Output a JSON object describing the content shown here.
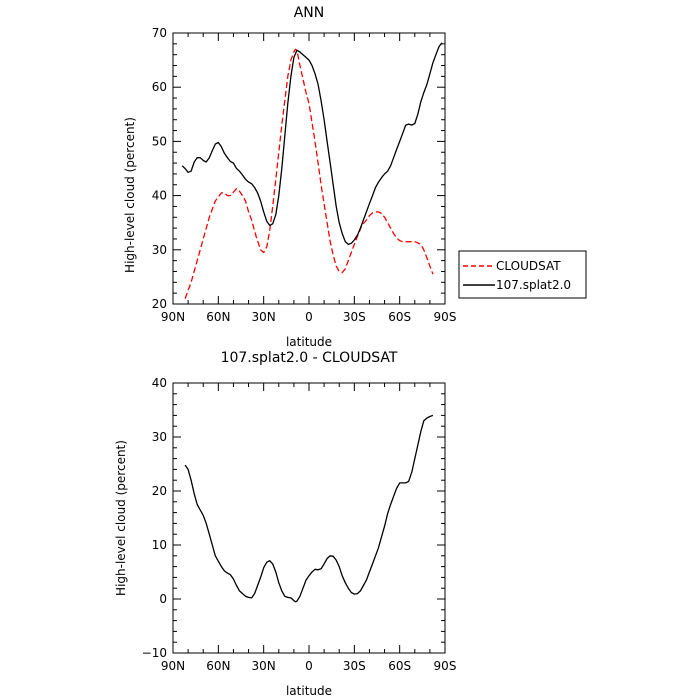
{
  "chart_data": [
    {
      "type": "line",
      "title": "ANN",
      "xlabel": "latitude",
      "ylabel": "High-level cloud (percent)",
      "xlim": [
        90,
        -90
      ],
      "ylim": [
        20,
        70
      ],
      "xticks": [
        90,
        60,
        30,
        0,
        -30,
        -60,
        -90
      ],
      "xtick_labels": [
        "90N",
        "60N",
        "30N",
        "0",
        "30S",
        "60S",
        "90S"
      ],
      "yticks": [
        20,
        30,
        40,
        50,
        60,
        70
      ],
      "ytick_labels": [
        "20",
        "30",
        "40",
        "50",
        "60",
        "70"
      ],
      "legend_position": "right",
      "series": [
        {
          "name": "CLOUDSAT",
          "color": "#ff0000",
          "dash": "dashed",
          "x": [
            82,
            78,
            74,
            70,
            66,
            62,
            58,
            56,
            54,
            52,
            48,
            46,
            44,
            42,
            40,
            38,
            35,
            32,
            30,
            28,
            26,
            24,
            22,
            20,
            18,
            16,
            14,
            12,
            10,
            9,
            8,
            6,
            4,
            2,
            0,
            -2,
            -4,
            -6,
            -8,
            -10,
            -12,
            -14,
            -16,
            -18,
            -20,
            -22,
            -24,
            -26,
            -28,
            -30,
            -32,
            -35,
            -38,
            -40,
            -42,
            -44,
            -46,
            -48,
            -50,
            -52,
            -54,
            -56,
            -58,
            -60,
            -62,
            -64,
            -66,
            -68,
            -70,
            -72,
            -74,
            -76,
            -78,
            -80,
            -82
          ],
          "y": [
            21,
            24,
            28,
            32,
            36,
            39,
            40.5,
            40.5,
            40,
            40,
            41.3,
            40.8,
            40,
            39,
            37,
            35.5,
            32.5,
            30,
            29.5,
            30.5,
            33.5,
            38,
            43,
            48,
            53,
            57.5,
            62,
            65,
            66.5,
            67,
            66.8,
            64,
            61.5,
            59,
            57,
            53.5,
            50,
            46,
            42,
            38.5,
            35,
            31.5,
            29,
            27,
            26,
            25.8,
            26.5,
            28,
            29.5,
            31,
            32.5,
            34.5,
            35.5,
            36.3,
            36.8,
            37,
            37,
            36.7,
            36,
            35,
            34,
            33,
            32.2,
            31.7,
            31.5,
            31.5,
            31.5,
            31.5,
            31.5,
            31.3,
            31,
            30,
            28.5,
            27,
            25.5
          ]
        },
        {
          "name": "107.splat2.0",
          "color": "#000000",
          "dash": "solid",
          "x": [
            84,
            82,
            80,
            78,
            76,
            74,
            72,
            70,
            68,
            66,
            64,
            62,
            60,
            58,
            56,
            54,
            52,
            50,
            48,
            46,
            44,
            42,
            40,
            38,
            36,
            34,
            32,
            30,
            28,
            26,
            24,
            22,
            20,
            18,
            16,
            14,
            12,
            10,
            8,
            6,
            4,
            2,
            0,
            -2,
            -4,
            -6,
            -8,
            -10,
            -12,
            -14,
            -16,
            -18,
            -20,
            -22,
            -24,
            -26,
            -28,
            -30,
            -32,
            -34,
            -36,
            -38,
            -40,
            -42,
            -44,
            -46,
            -48,
            -50,
            -52,
            -54,
            -56,
            -58,
            -60,
            -62,
            -64,
            -66,
            -68,
            -70,
            -72,
            -74,
            -76,
            -78,
            -80,
            -82,
            -84,
            -86,
            -88
          ],
          "y": [
            45.5,
            45,
            44.3,
            44.5,
            46.2,
            47,
            47,
            46.5,
            46.2,
            47,
            48.3,
            49.5,
            49.8,
            49,
            47.8,
            47,
            46.3,
            46,
            45,
            44.5,
            43.8,
            43,
            42.5,
            42.2,
            41.5,
            40.5,
            39,
            37,
            35.3,
            34.5,
            34.8,
            36.5,
            40,
            45,
            51,
            57,
            62,
            65.5,
            66.8,
            66.5,
            66,
            65.5,
            65,
            64,
            62.5,
            60.5,
            57.5,
            54,
            50,
            46,
            42,
            38,
            35,
            33,
            31.5,
            31,
            31.2,
            31.8,
            32.7,
            34,
            35.5,
            37,
            38.5,
            40,
            41.5,
            42.5,
            43.3,
            44,
            44.5,
            45.5,
            47,
            48.5,
            50,
            51.5,
            53,
            53.2,
            53,
            53.3,
            55,
            57.3,
            59,
            60.5,
            62.5,
            64.5,
            66,
            67.5,
            68.2
          ]
        }
      ]
    },
    {
      "type": "line",
      "title": "107.splat2.0 - CLOUDSAT",
      "xlabel": "latitude",
      "ylabel": "High-level cloud (percent)",
      "xlim": [
        90,
        -90
      ],
      "ylim": [
        -10,
        40
      ],
      "xticks": [
        90,
        60,
        30,
        0,
        -30,
        -60,
        -90
      ],
      "xtick_labels": [
        "90N",
        "60N",
        "30N",
        "0",
        "30S",
        "60S",
        "90S"
      ],
      "yticks": [
        -10,
        0,
        10,
        20,
        30,
        40
      ],
      "ytick_labels": [
        "−10",
        "0",
        "10",
        "20",
        "30",
        "40"
      ],
      "series": [
        {
          "name": "",
          "color": "#000000",
          "dash": "solid",
          "x": [
            82,
            80,
            78,
            76,
            74,
            72,
            70,
            68,
            66,
            64,
            62,
            60,
            58,
            56,
            54,
            52,
            50,
            48,
            46,
            44,
            42,
            40,
            38,
            36,
            34,
            32,
            30,
            28,
            26,
            24,
            22,
            20,
            18,
            16,
            14,
            12,
            10,
            9,
            8,
            6,
            4,
            2,
            0,
            -2,
            -4,
            -6,
            -8,
            -10,
            -12,
            -14,
            -16,
            -18,
            -20,
            -22,
            -24,
            -26,
            -28,
            -30,
            -32,
            -34,
            -36,
            -38,
            -40,
            -42,
            -44,
            -46,
            -48,
            -50,
            -52,
            -54,
            -56,
            -58,
            -60,
            -62,
            -64,
            -66,
            -68,
            -70,
            -72,
            -74,
            -76,
            -78,
            -80,
            -82
          ],
          "y": [
            24.8,
            24,
            22,
            19.5,
            17.5,
            16.5,
            15.5,
            14,
            12,
            10,
            8,
            7,
            6,
            5.2,
            4.8,
            4.5,
            3.7,
            2.5,
            1.5,
            1,
            0.5,
            0.3,
            0.2,
            1,
            2.5,
            4,
            5.8,
            6.8,
            7.1,
            6.5,
            5,
            3,
            1.5,
            0.5,
            0.3,
            0.2,
            -0.3,
            -0.5,
            -0.4,
            0.5,
            2,
            3.5,
            4.3,
            5,
            5.5,
            5.4,
            5.6,
            6.5,
            7.5,
            8,
            7.9,
            7.2,
            6,
            4.3,
            3,
            2,
            1.2,
            0.9,
            1,
            1.5,
            2.5,
            3.5,
            5,
            6.5,
            8,
            9.5,
            11.5,
            13.5,
            15.8,
            17.5,
            19,
            20.5,
            21.5,
            21.5,
            21.5,
            21.8,
            23.5,
            26,
            28.5,
            31,
            33,
            33.5,
            33.8,
            34
          ]
        }
      ]
    }
  ]
}
